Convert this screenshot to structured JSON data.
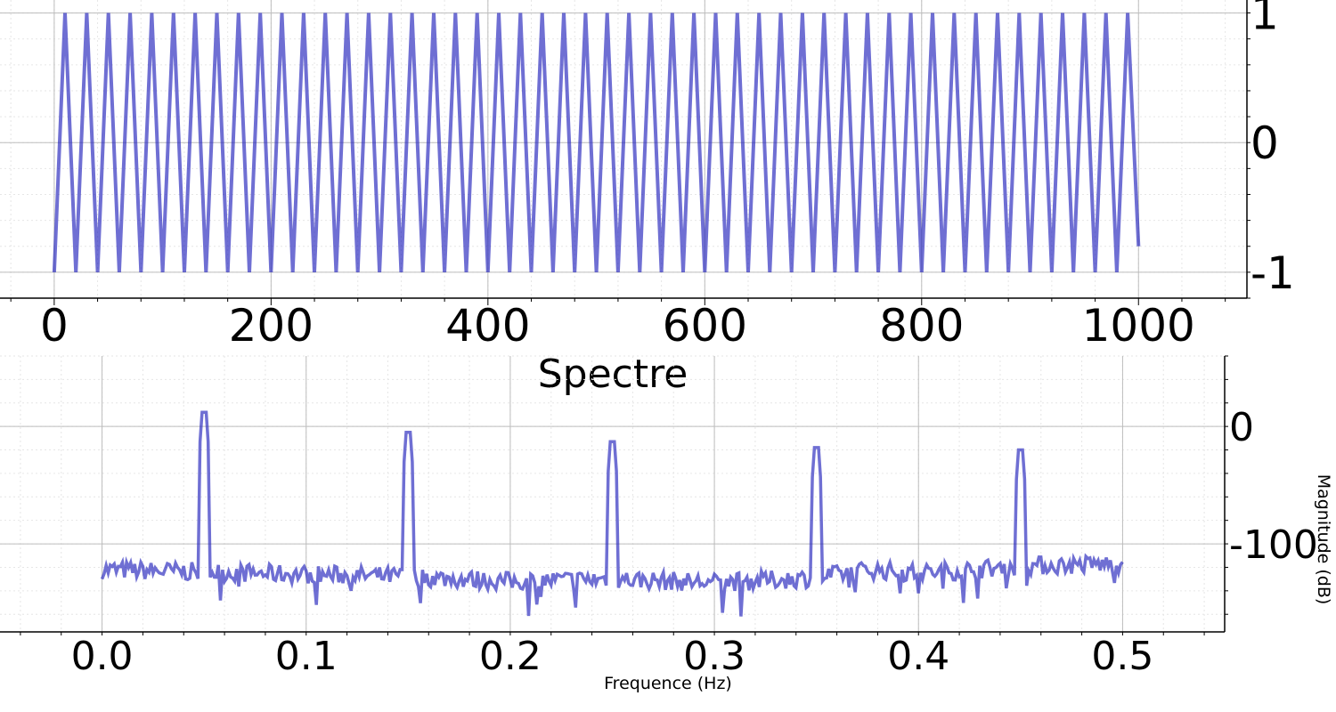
{
  "chart_data": [
    {
      "type": "line",
      "title": "",
      "xlabel": "",
      "ylabel": "",
      "xlim": [
        -50,
        1100
      ],
      "ylim": [
        -1.2,
        1.1
      ],
      "grid": true,
      "legend": "none",
      "x_ticks": [
        "0",
        "200",
        "400",
        "600",
        "800",
        "1000"
      ],
      "y_ticks": [
        "1",
        "0",
        "-1"
      ],
      "series": [
        {
          "color": "#2222bb",
          "start": 0,
          "period": 20,
          "end": 1000,
          "min": -1,
          "max": 1,
          "end_value": -0.8
        }
      ]
    },
    {
      "type": "line",
      "title": "Spectre",
      "xlabel": "Frequence (Hz)",
      "ylabel": "Magnitude (dB)",
      "xlim": [
        -0.05,
        0.55
      ],
      "ylim": [
        -175,
        60
      ],
      "grid": true,
      "legend": "none",
      "x_ticks": [
        "0.0",
        "0.1",
        "0.2",
        "0.3",
        "0.4",
        "0.5"
      ],
      "y_ticks": [
        "0",
        "-100"
      ],
      "series": [
        {
          "color": "#2222bb",
          "noise_floor": [
            [
              0.0,
              -122
            ],
            [
              0.05,
              -124
            ],
            [
              0.1,
              -126
            ],
            [
              0.15,
              -128
            ],
            [
              0.2,
              -132
            ],
            [
              0.25,
              -130
            ],
            [
              0.3,
              -133
            ],
            [
              0.35,
              -129
            ],
            [
              0.375,
              -122
            ],
            [
              0.4,
              -125
            ],
            [
              0.45,
              -119
            ],
            [
              0.5,
              -117
            ]
          ],
          "peaks": [
            {
              "x": 0.05,
              "y": 12
            },
            {
              "x": 0.15,
              "y": -5
            },
            {
              "x": 0.25,
              "y": -13
            },
            {
              "x": 0.35,
              "y": -18
            },
            {
              "x": 0.45,
              "y": -20
            }
          ]
        }
      ]
    }
  ]
}
